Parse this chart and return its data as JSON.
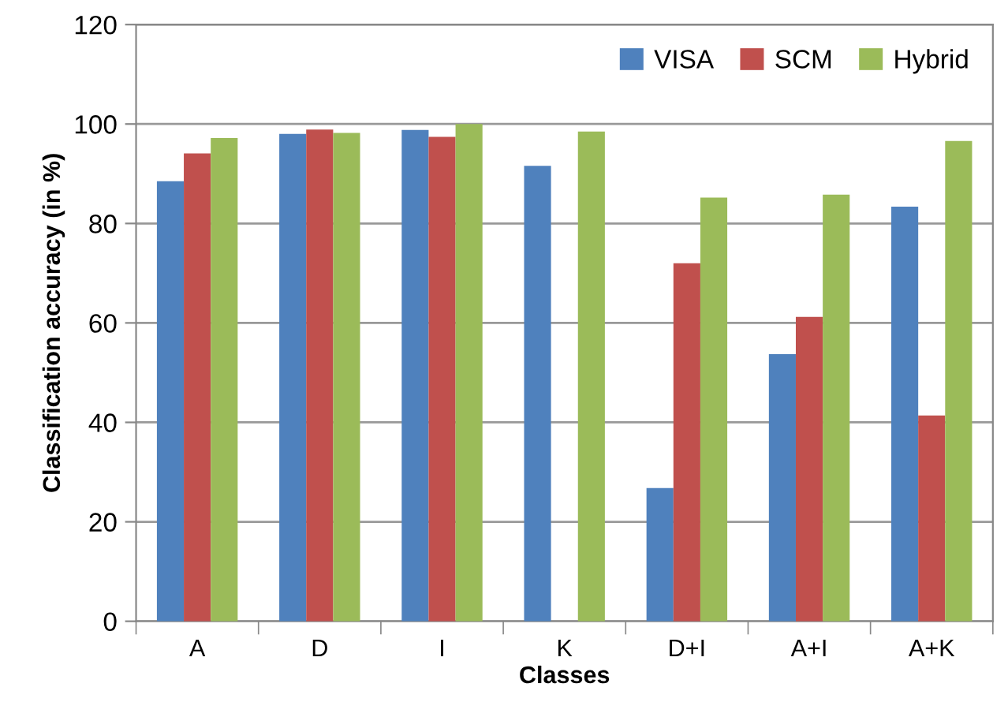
{
  "chart_data": {
    "type": "bar",
    "xlabel": "Classes",
    "ylabel": "Classification accuracy (in %)",
    "categories": [
      "A",
      "D",
      "I",
      "K",
      "D+I",
      "A+I",
      "A+K"
    ],
    "series": [
      {
        "name": "VISA",
        "color": "#4f81bd",
        "values": [
          88.5,
          98.0,
          98.8,
          91.6,
          26.8,
          53.7,
          83.4
        ]
      },
      {
        "name": "SCM",
        "color": "#c0504d",
        "values": [
          94.1,
          98.9,
          97.4,
          0,
          72.0,
          61.2,
          41.4
        ]
      },
      {
        "name": "Hybrid",
        "color": "#9bbb59",
        "values": [
          97.2,
          98.2,
          100,
          98.5,
          85.2,
          85.8,
          96.6
        ]
      }
    ],
    "ylim": [
      0,
      120
    ],
    "yticks": [
      0,
      20,
      40,
      60,
      80,
      100,
      120
    ],
    "grid": "y",
    "legend": "top right"
  }
}
